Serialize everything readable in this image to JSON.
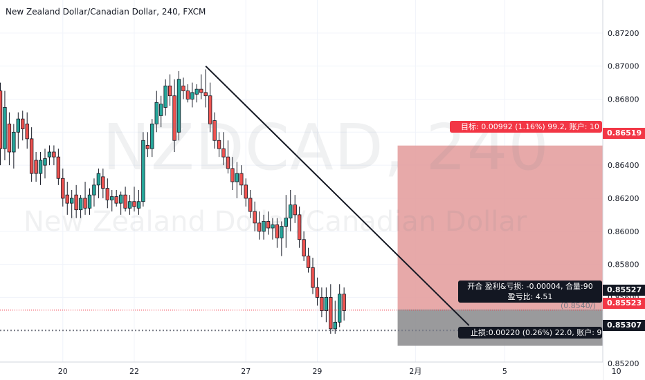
{
  "title": "New Zealand Dollar/Canadian Dollar, 240, FXCM",
  "watermark": {
    "symbol": "NZDCAD, 240",
    "description": "New Zealand Dollar/Canadian Dollar"
  },
  "colors": {
    "up": "#26a69a",
    "down": "#ef5350",
    "target_zone": "#e39a9a",
    "stop_zone": "#8f8f91",
    "trendline": "#131722"
  },
  "position_tool": {
    "target_label": "目标: 0.00992 (1.16%) 99.2, 账户: 10",
    "open_label_line1": "开合 盈利&亏损: -0.00004, 合量:90",
    "open_label_line2": "盈亏比: 4.51",
    "stop_label": "止损:0.00220 (0.26%) 22.0, 账户: 9",
    "entry_note": "(0.8540/)",
    "target_price": 0.86519,
    "entry_price": 0.85527,
    "stop_price": 0.85307
  },
  "price_tags": {
    "target": "0.86519",
    "entry": "0.85527",
    "current": "0.85523",
    "stop": "0.85307"
  },
  "current_price": 0.85523,
  "dotted_level": 0.854,
  "chart_data": {
    "type": "candlestick",
    "title": "New Zealand Dollar/Canadian Dollar, 240, FXCM",
    "ylim": [
      0.851,
      0.874
    ],
    "y_ticks": [
      "0.87200",
      "0.87000",
      "0.86800",
      "0.86600",
      "0.86400",
      "0.86200",
      "0.86000",
      "0.85800",
      "0.85600",
      "0.85200"
    ],
    "y_tick_values": [
      0.872,
      0.87,
      0.868,
      0.866,
      0.864,
      0.862,
      0.86,
      0.858,
      0.856,
      0.852
    ],
    "x_ticks": [
      "20",
      "22",
      "27",
      "29",
      "2月",
      "5",
      "10"
    ],
    "x_tick_index": [
      14,
      30,
      55,
      71,
      93,
      113,
      138
    ],
    "grid": true,
    "trendline": {
      "from_index": 46,
      "from_price": 0.87,
      "to_index": 105,
      "to_price": 0.8543
    },
    "candles": [
      {
        "o": 0.8685,
        "h": 0.869,
        "l": 0.864,
        "c": 0.865
      },
      {
        "o": 0.865,
        "h": 0.8685,
        "l": 0.8643,
        "c": 0.8675
      },
      {
        "o": 0.8665,
        "h": 0.8672,
        "l": 0.864,
        "c": 0.8648
      },
      {
        "o": 0.8648,
        "h": 0.8665,
        "l": 0.8638,
        "c": 0.866
      },
      {
        "o": 0.866,
        "h": 0.8672,
        "l": 0.865,
        "c": 0.8668
      },
      {
        "o": 0.8668,
        "h": 0.8673,
        "l": 0.8655,
        "c": 0.8662
      },
      {
        "o": 0.8665,
        "h": 0.8672,
        "l": 0.865,
        "c": 0.8656
      },
      {
        "o": 0.8656,
        "h": 0.8663,
        "l": 0.863,
        "c": 0.8635
      },
      {
        "o": 0.8643,
        "h": 0.8648,
        "l": 0.863,
        "c": 0.8635
      },
      {
        "o": 0.8635,
        "h": 0.8648,
        "l": 0.8628,
        "c": 0.8643
      },
      {
        "o": 0.864,
        "h": 0.865,
        "l": 0.8632,
        "c": 0.8644
      },
      {
        "o": 0.8645,
        "h": 0.8652,
        "l": 0.864,
        "c": 0.8648
      },
      {
        "o": 0.8648,
        "h": 0.8652,
        "l": 0.864,
        "c": 0.8645
      },
      {
        "o": 0.8645,
        "h": 0.865,
        "l": 0.8628,
        "c": 0.8632
      },
      {
        "o": 0.8632,
        "h": 0.8638,
        "l": 0.8615,
        "c": 0.862
      },
      {
        "o": 0.8622,
        "h": 0.863,
        "l": 0.861,
        "c": 0.8617
      },
      {
        "o": 0.8617,
        "h": 0.8625,
        "l": 0.8608,
        "c": 0.862
      },
      {
        "o": 0.8622,
        "h": 0.8628,
        "l": 0.8608,
        "c": 0.8613
      },
      {
        "o": 0.8613,
        "h": 0.8622,
        "l": 0.8608,
        "c": 0.862
      },
      {
        "o": 0.862,
        "h": 0.863,
        "l": 0.861,
        "c": 0.8614
      },
      {
        "o": 0.8614,
        "h": 0.8626,
        "l": 0.861,
        "c": 0.8622
      },
      {
        "o": 0.8622,
        "h": 0.8632,
        "l": 0.8615,
        "c": 0.8628
      },
      {
        "o": 0.8628,
        "h": 0.8638,
        "l": 0.862,
        "c": 0.8635
      },
      {
        "o": 0.8633,
        "h": 0.8638,
        "l": 0.862,
        "c": 0.8626
      },
      {
        "o": 0.8626,
        "h": 0.8632,
        "l": 0.8614,
        "c": 0.8619
      },
      {
        "o": 0.8619,
        "h": 0.8625,
        "l": 0.8612,
        "c": 0.8621
      },
      {
        "o": 0.8621,
        "h": 0.8625,
        "l": 0.8615,
        "c": 0.8617
      },
      {
        "o": 0.8617,
        "h": 0.8624,
        "l": 0.861,
        "c": 0.8622
      },
      {
        "o": 0.8622,
        "h": 0.8627,
        "l": 0.8612,
        "c": 0.8614
      },
      {
        "o": 0.8614,
        "h": 0.8622,
        "l": 0.861,
        "c": 0.8618
      },
      {
        "o": 0.8618,
        "h": 0.8627,
        "l": 0.8612,
        "c": 0.8615
      },
      {
        "o": 0.8614,
        "h": 0.8625,
        "l": 0.861,
        "c": 0.8618
      },
      {
        "o": 0.8618,
        "h": 0.866,
        "l": 0.8615,
        "c": 0.8655
      },
      {
        "o": 0.8652,
        "h": 0.866,
        "l": 0.8645,
        "c": 0.865
      },
      {
        "o": 0.865,
        "h": 0.8668,
        "l": 0.8645,
        "c": 0.8665
      },
      {
        "o": 0.8665,
        "h": 0.8685,
        "l": 0.866,
        "c": 0.8678
      },
      {
        "o": 0.867,
        "h": 0.8682,
        "l": 0.8663,
        "c": 0.8677
      },
      {
        "o": 0.8675,
        "h": 0.8692,
        "l": 0.867,
        "c": 0.8688
      },
      {
        "o": 0.8688,
        "h": 0.8695,
        "l": 0.8676,
        "c": 0.8682
      },
      {
        "o": 0.8682,
        "h": 0.8692,
        "l": 0.8648,
        "c": 0.8655
      },
      {
        "o": 0.866,
        "h": 0.8697,
        "l": 0.8655,
        "c": 0.8692
      },
      {
        "o": 0.8688,
        "h": 0.8693,
        "l": 0.868,
        "c": 0.8685
      },
      {
        "o": 0.8685,
        "h": 0.8689,
        "l": 0.8678,
        "c": 0.868
      },
      {
        "o": 0.868,
        "h": 0.869,
        "l": 0.8675,
        "c": 0.8684
      },
      {
        "o": 0.8683,
        "h": 0.8689,
        "l": 0.8678,
        "c": 0.8686
      },
      {
        "o": 0.8686,
        "h": 0.8695,
        "l": 0.868,
        "c": 0.8684
      },
      {
        "o": 0.8684,
        "h": 0.8698,
        "l": 0.8675,
        "c": 0.8682
      },
      {
        "o": 0.8682,
        "h": 0.869,
        "l": 0.866,
        "c": 0.8665
      },
      {
        "o": 0.8667,
        "h": 0.8672,
        "l": 0.865,
        "c": 0.8655
      },
      {
        "o": 0.8655,
        "h": 0.866,
        "l": 0.8645,
        "c": 0.865
      },
      {
        "o": 0.865,
        "h": 0.866,
        "l": 0.864,
        "c": 0.8645
      },
      {
        "o": 0.8645,
        "h": 0.8655,
        "l": 0.8635,
        "c": 0.8638
      },
      {
        "o": 0.8638,
        "h": 0.8645,
        "l": 0.8625,
        "c": 0.863
      },
      {
        "o": 0.863,
        "h": 0.8642,
        "l": 0.862,
        "c": 0.8635
      },
      {
        "o": 0.8635,
        "h": 0.864,
        "l": 0.8622,
        "c": 0.8628
      },
      {
        "o": 0.8628,
        "h": 0.8632,
        "l": 0.8615,
        "c": 0.862
      },
      {
        "o": 0.862,
        "h": 0.8625,
        "l": 0.8608,
        "c": 0.8612
      },
      {
        "o": 0.8612,
        "h": 0.8618,
        "l": 0.86,
        "c": 0.8605
      },
      {
        "o": 0.8605,
        "h": 0.8612,
        "l": 0.8595,
        "c": 0.86
      },
      {
        "o": 0.86,
        "h": 0.861,
        "l": 0.8595,
        "c": 0.8606
      },
      {
        "o": 0.8606,
        "h": 0.8612,
        "l": 0.8598,
        "c": 0.8602
      },
      {
        "o": 0.8602,
        "h": 0.8608,
        "l": 0.8595,
        "c": 0.8604
      },
      {
        "o": 0.8604,
        "h": 0.8608,
        "l": 0.859,
        "c": 0.8596
      },
      {
        "o": 0.8596,
        "h": 0.8606,
        "l": 0.8585,
        "c": 0.8603
      },
      {
        "o": 0.8603,
        "h": 0.8622,
        "l": 0.859,
        "c": 0.8608
      },
      {
        "o": 0.8608,
        "h": 0.8625,
        "l": 0.86,
        "c": 0.8616
      },
      {
        "o": 0.8616,
        "h": 0.8622,
        "l": 0.8605,
        "c": 0.861
      },
      {
        "o": 0.861,
        "h": 0.8615,
        "l": 0.859,
        "c": 0.8595
      },
      {
        "o": 0.8595,
        "h": 0.86,
        "l": 0.8582,
        "c": 0.8585
      },
      {
        "o": 0.8585,
        "h": 0.859,
        "l": 0.8575,
        "c": 0.8578
      },
      {
        "o": 0.8578,
        "h": 0.8584,
        "l": 0.8562,
        "c": 0.8566
      },
      {
        "o": 0.8566,
        "h": 0.8572,
        "l": 0.8555,
        "c": 0.856
      },
      {
        "o": 0.856,
        "h": 0.8566,
        "l": 0.8548,
        "c": 0.8552
      },
      {
        "o": 0.8552,
        "h": 0.8566,
        "l": 0.8545,
        "c": 0.856
      },
      {
        "o": 0.856,
        "h": 0.8568,
        "l": 0.8538,
        "c": 0.8541
      },
      {
        "o": 0.8541,
        "h": 0.8558,
        "l": 0.8538,
        "c": 0.8545
      },
      {
        "o": 0.8545,
        "h": 0.8568,
        "l": 0.8542,
        "c": 0.8562
      },
      {
        "o": 0.8562,
        "h": 0.8566,
        "l": 0.8546,
        "c": 0.8552
      }
    ],
    "candle_x_index": [
      0,
      1,
      2,
      3,
      4,
      5,
      6,
      7,
      8,
      9,
      10,
      11,
      12,
      13,
      14,
      15,
      16,
      17,
      18,
      19,
      20,
      21,
      22,
      23,
      24,
      25,
      26,
      27,
      28,
      29,
      30,
      31,
      32,
      33,
      34,
      35,
      36,
      37,
      38,
      39,
      40,
      41,
      42,
      43,
      44,
      45,
      46,
      47,
      48,
      49,
      50,
      51,
      52,
      53,
      54,
      55,
      56,
      57,
      58,
      59,
      60,
      61,
      62,
      63,
      64,
      65,
      66,
      67,
      68,
      69,
      70,
      71,
      72,
      73,
      74,
      75,
      76,
      77
    ]
  }
}
